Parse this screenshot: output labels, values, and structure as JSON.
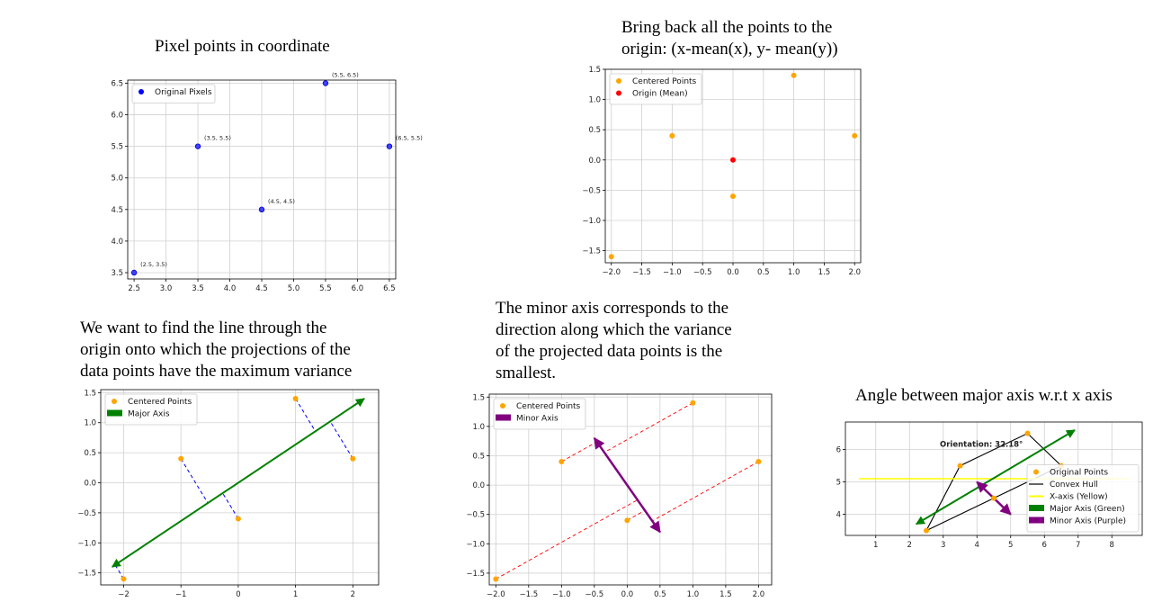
{
  "captions": {
    "c1": "Pixel points in coordinate",
    "c2": "Bring back all the points to the\norigin: (x-mean(x), y- mean(y))",
    "c3": "We want to find the line through the\norigin onto which the projections of the\ndata points have the maximum variance",
    "c4": "The minor axis corresponds to the\ndirection along which the variance\nof the projected data points is the\nsmallest.",
    "c5": "Angle between major axis w.r.t x axis"
  },
  "chart_data": [
    {
      "id": "p1",
      "type": "scatter",
      "xlim": [
        2.4,
        6.6
      ],
      "ylim": [
        3.4,
        6.55
      ],
      "xticks": [
        "2.5",
        "3.0",
        "3.5",
        "4.0",
        "4.5",
        "5.0",
        "5.5",
        "6.0",
        "6.5"
      ],
      "yticks": [
        "3.5",
        "4.0",
        "4.5",
        "5.0",
        "5.5",
        "6.0",
        "6.5"
      ],
      "grid": true,
      "legend": [
        "Original Pixels"
      ],
      "series": [
        {
          "name": "Original Pixels",
          "color": "#0000ff",
          "points": [
            [
              2.5,
              3.5
            ],
            [
              3.5,
              5.5
            ],
            [
              4.5,
              4.5
            ],
            [
              5.5,
              6.5
            ],
            [
              6.5,
              5.5
            ]
          ]
        }
      ],
      "annotations": [
        "(2.5, 3.5)",
        "(3.5, 5.5)",
        "(4.5, 4.5)",
        "(5.5, 6.5)",
        "(6.5, 5.5)"
      ]
    },
    {
      "id": "p2",
      "type": "scatter",
      "xlim": [
        -2.1,
        2.1
      ],
      "ylim": [
        -1.7,
        1.5
      ],
      "xticks": [
        "−2.0",
        "−1.5",
        "−1.0",
        "−0.5",
        "0.0",
        "0.5",
        "1.0",
        "1.5",
        "2.0"
      ],
      "yticks": [
        "−1.5",
        "−1.0",
        "−0.5",
        "0.0",
        "0.5",
        "1.0",
        "1.5"
      ],
      "grid": true,
      "legend": [
        "Centered Points",
        "Origin (Mean)"
      ],
      "series": [
        {
          "name": "Centered Points",
          "color": "#ffa500",
          "points": [
            [
              -2,
              -1.6
            ],
            [
              -1,
              0.4
            ],
            [
              0,
              -0.6
            ],
            [
              1,
              1.4
            ],
            [
              2,
              0.4
            ]
          ]
        },
        {
          "name": "Origin (Mean)",
          "color": "#ff0000",
          "points": [
            [
              0,
              0
            ]
          ]
        }
      ]
    },
    {
      "id": "p3",
      "type": "scatter",
      "xlim": [
        -2.4,
        2.45
      ],
      "ylim": [
        -1.7,
        1.55
      ],
      "xticks": [
        "−2",
        "−1",
        "0",
        "1",
        "2"
      ],
      "yticks": [
        "−1.5",
        "−1.0",
        "−0.5",
        "0.0",
        "0.5",
        "1.0",
        "1.5"
      ],
      "grid": true,
      "legend": [
        "Centered Points",
        "Major Axis"
      ],
      "series": [
        {
          "name": "Centered Points",
          "color": "#ffa500",
          "points": [
            [
              -2,
              -1.6
            ],
            [
              -1,
              0.4
            ],
            [
              0,
              -0.6
            ],
            [
              1,
              1.4
            ],
            [
              2,
              0.4
            ]
          ]
        }
      ],
      "major_axis": {
        "from": [
          -2.2,
          -1.4
        ],
        "to": [
          2.2,
          1.4
        ],
        "color": "#008000"
      },
      "projection_lines": {
        "color": "#0000ff",
        "style": "dashed"
      }
    },
    {
      "id": "p4",
      "type": "scatter",
      "xlim": [
        -2.1,
        2.2
      ],
      "ylim": [
        -1.7,
        1.55
      ],
      "xticks": [
        "−2.0",
        "−1.5",
        "−1.0",
        "−0.5",
        "0.0",
        "0.5",
        "1.0",
        "1.5",
        "2.0"
      ],
      "yticks": [
        "−1.5",
        "−1.0",
        "−0.5",
        "0.0",
        "0.5",
        "1.0",
        "1.5"
      ],
      "grid": true,
      "legend": [
        "Centered Points",
        "Minor Axis"
      ],
      "series": [
        {
          "name": "Centered Points",
          "color": "#ffa500",
          "points": [
            [
              -2,
              -1.6
            ],
            [
              -1,
              0.4
            ],
            [
              0,
              -0.6
            ],
            [
              1,
              1.4
            ],
            [
              2,
              0.4
            ]
          ]
        }
      ],
      "minor_axis": {
        "from": [
          -0.5,
          0.8
        ],
        "to": [
          0.5,
          -0.8
        ],
        "color": "#800080"
      },
      "projection_lines": {
        "color": "#ff0000",
        "style": "dashed"
      }
    },
    {
      "id": "p5",
      "type": "scatter",
      "xlim": [
        0.1,
        8.9
      ],
      "ylim": [
        3.35,
        6.85
      ],
      "xticks": [
        "1",
        "2",
        "3",
        "4",
        "5",
        "6",
        "7",
        "8"
      ],
      "yticks": [
        "4",
        "5",
        "6"
      ],
      "grid": true,
      "legend": [
        "Original Points",
        "Convex Hull",
        "X-axis (Yellow)",
        "Major Axis (Green)",
        "Minor Axis (Purple)"
      ],
      "series": [
        {
          "name": "Original Points",
          "color": "#ffa500",
          "points": [
            [
              2.5,
              3.5
            ],
            [
              3.5,
              5.5
            ],
            [
              4.5,
              4.5
            ],
            [
              5.5,
              6.5
            ],
            [
              6.5,
              5.5
            ]
          ]
        }
      ],
      "hull": [
        [
          2.5,
          3.5
        ],
        [
          6.5,
          5.5
        ],
        [
          5.5,
          6.5
        ],
        [
          3.5,
          5.5
        ]
      ],
      "x_axis_line": {
        "y": 5.1,
        "from": 0.5,
        "to": 8.5,
        "color": "#ffff00"
      },
      "major_axis": {
        "from": [
          2.2,
          3.7
        ],
        "to": [
          6.9,
          6.6
        ],
        "color": "#008000"
      },
      "minor_axis": {
        "from": [
          4.0,
          5.0
        ],
        "to": [
          5.0,
          4.0
        ],
        "color": "#800080"
      },
      "orientation_label": "Orientation: 32.18°"
    }
  ]
}
